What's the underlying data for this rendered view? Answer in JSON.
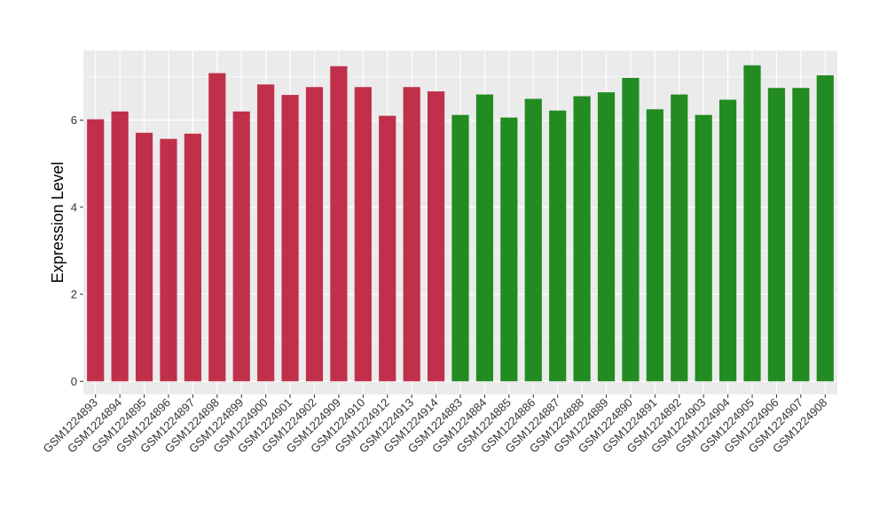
{
  "chart_data": {
    "type": "bar",
    "title": "",
    "xlabel": "",
    "ylabel": "Expression Level",
    "ylim": [
      -0.3,
      7.6
    ],
    "yticks": [
      0,
      2,
      4,
      6
    ],
    "grid": true,
    "legend": "none",
    "colors": {
      "group_1": "#C0304A",
      "group_2": "#228B22",
      "panel": "#EBEBEB",
      "grid": "#FFFFFF"
    },
    "categories": [
      "GSM1224893",
      "GSM1224894",
      "GSM1224895",
      "GSM1224896",
      "GSM1224897",
      "GSM1224898",
      "GSM1224899",
      "GSM1224900",
      "GSM1224901",
      "GSM1224902",
      "GSM1224909",
      "GSM1224910",
      "GSM1224912",
      "GSM1224913",
      "GSM1224914",
      "GSM1224883",
      "GSM1224884",
      "GSM1224885",
      "GSM1224886",
      "GSM1224887",
      "GSM1224888",
      "GSM1224889",
      "GSM1224890",
      "GSM1224891",
      "GSM1224892",
      "GSM1224903",
      "GSM1224904",
      "GSM1224905",
      "GSM1224906",
      "GSM1224907",
      "GSM1224908"
    ],
    "values": [
      6.02,
      6.2,
      5.71,
      5.57,
      5.69,
      7.08,
      6.2,
      6.82,
      6.58,
      6.76,
      7.24,
      6.76,
      6.1,
      6.76,
      6.66,
      6.12,
      6.59,
      6.06,
      6.49,
      6.22,
      6.55,
      6.64,
      6.97,
      6.25,
      6.59,
      6.12,
      6.47,
      7.26,
      6.74,
      6.74,
      7.03
    ],
    "groups": [
      "group_1",
      "group_1",
      "group_1",
      "group_1",
      "group_1",
      "group_1",
      "group_1",
      "group_1",
      "group_1",
      "group_1",
      "group_1",
      "group_1",
      "group_1",
      "group_1",
      "group_1",
      "group_2",
      "group_2",
      "group_2",
      "group_2",
      "group_2",
      "group_2",
      "group_2",
      "group_2",
      "group_2",
      "group_2",
      "group_2",
      "group_2",
      "group_2",
      "group_2",
      "group_2",
      "group_2"
    ]
  }
}
